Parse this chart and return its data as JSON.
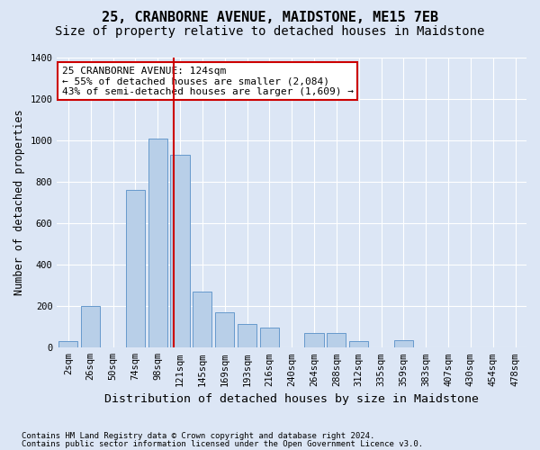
{
  "title": "25, CRANBORNE AVENUE, MAIDSTONE, ME15 7EB",
  "subtitle": "Size of property relative to detached houses in Maidstone",
  "xlabel": "Distribution of detached houses by size in Maidstone",
  "ylabel": "Number of detached properties",
  "categories": [
    "2sqm",
    "26sqm",
    "50sqm",
    "74sqm",
    "98sqm",
    "121sqm",
    "145sqm",
    "169sqm",
    "193sqm",
    "216sqm",
    "240sqm",
    "264sqm",
    "288sqm",
    "312sqm",
    "335sqm",
    "359sqm",
    "383sqm",
    "407sqm",
    "430sqm",
    "454sqm",
    "478sqm"
  ],
  "values": [
    30,
    200,
    0,
    760,
    1010,
    930,
    270,
    170,
    115,
    95,
    0,
    70,
    70,
    30,
    0,
    35,
    0,
    0,
    0,
    0,
    0
  ],
  "bar_color": "#b8cfe8",
  "bar_edge_color": "#6699cc",
  "annotation_text": "25 CRANBORNE AVENUE: 124sqm\n← 55% of detached houses are smaller (2,084)\n43% of semi-detached houses are larger (1,609) →",
  "annotation_box_color": "#ffffff",
  "annotation_box_edge": "#cc0000",
  "vline_color": "#cc0000",
  "footnote1": "Contains HM Land Registry data © Crown copyright and database right 2024.",
  "footnote2": "Contains public sector information licensed under the Open Government Licence v3.0.",
  "ylim": [
    0,
    1400
  ],
  "yticks": [
    0,
    200,
    400,
    600,
    800,
    1000,
    1200,
    1400
  ],
  "bg_color": "#dce6f5",
  "plot_bg_color": "#dce6f5",
  "title_fontsize": 11,
  "subtitle_fontsize": 10,
  "xlabel_fontsize": 9.5,
  "ylabel_fontsize": 8.5,
  "tick_fontsize": 7.5,
  "annotation_fontsize": 8,
  "footnote_fontsize": 6.5
}
